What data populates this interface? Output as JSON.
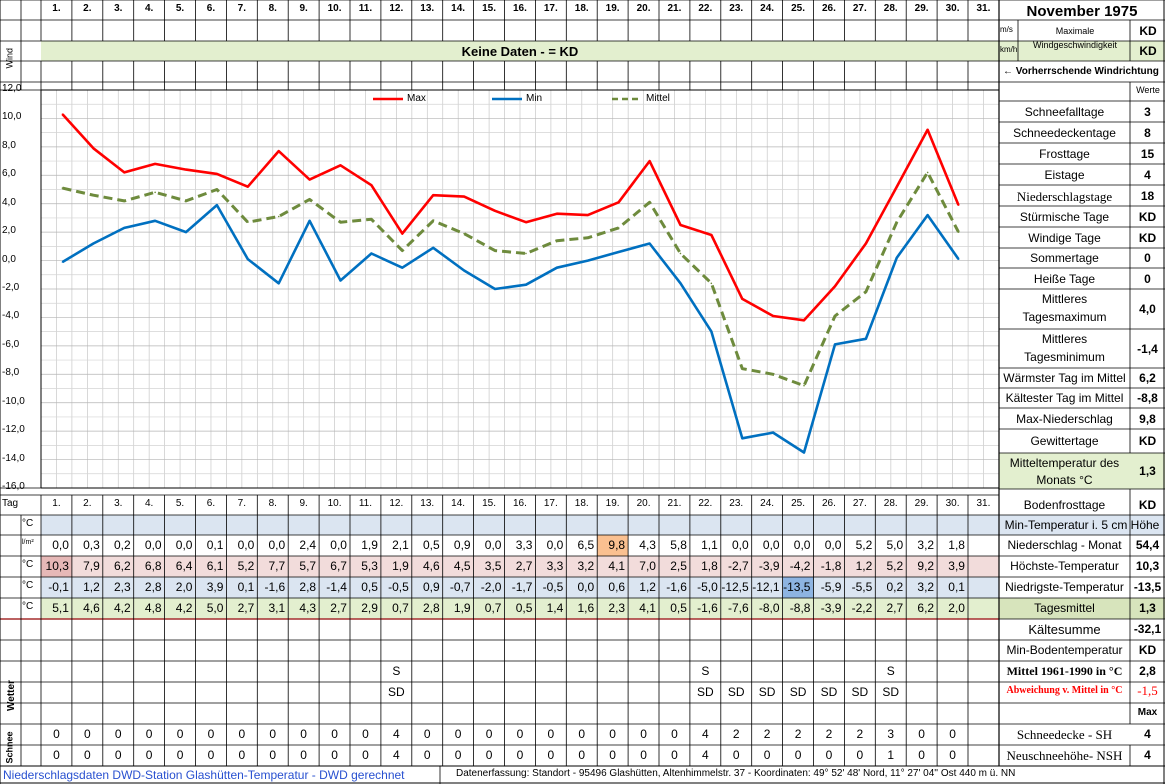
{
  "title": "November 1975",
  "days": [
    "1.",
    "2.",
    "3.",
    "4.",
    "5.",
    "6.",
    "7.",
    "8.",
    "9.",
    "10.",
    "11.",
    "12.",
    "13.",
    "14.",
    "15.",
    "16.",
    "17.",
    "18.",
    "19.",
    "20.",
    "21.",
    "22.",
    "23.",
    "24.",
    "25.",
    "26.",
    "27.",
    "28.",
    "29.",
    "30.",
    "31."
  ],
  "wind": {
    "label": "Wind",
    "no_data": "Keine Daten -  = KD",
    "unit_ms": "m/s",
    "unit_kmh": "km/h",
    "max_label": "Maximale Windgeschwindigkeit",
    "max_ms": "KD",
    "max_kmh": "KD",
    "direction": "← Vorherrschende Windrichtung",
    "werte": "Werte"
  },
  "chart_data": {
    "type": "line",
    "x": [
      1,
      2,
      3,
      4,
      5,
      6,
      7,
      8,
      9,
      10,
      11,
      12,
      13,
      14,
      15,
      16,
      17,
      18,
      19,
      20,
      21,
      22,
      23,
      24,
      25,
      26,
      27,
      28,
      29,
      30
    ],
    "series": [
      {
        "name": "Max",
        "color": "#ff0000",
        "values": [
          10.3,
          7.9,
          6.2,
          6.8,
          6.4,
          6.1,
          5.2,
          7.7,
          5.7,
          6.7,
          5.3,
          1.9,
          4.6,
          4.5,
          3.5,
          2.7,
          3.3,
          3.2,
          4.1,
          7.0,
          2.5,
          1.8,
          -2.7,
          -3.9,
          -4.2,
          -1.8,
          1.2,
          5.2,
          9.2,
          3.9
        ]
      },
      {
        "name": "Min",
        "color": "#0070c0",
        "values": [
          -0.1,
          1.2,
          2.3,
          2.8,
          2.0,
          3.9,
          0.1,
          -1.6,
          2.8,
          -1.4,
          0.5,
          -0.5,
          0.9,
          -0.7,
          -2.0,
          -1.7,
          -0.5,
          0.0,
          0.6,
          1.2,
          -1.6,
          -5.0,
          -12.5,
          -12.1,
          -13.5,
          -5.9,
          -5.5,
          0.2,
          3.2,
          0.1
        ]
      },
      {
        "name": "Mittel",
        "color": "#6e8b3d",
        "values": [
          5.1,
          4.6,
          4.2,
          4.8,
          4.2,
          5.0,
          2.7,
          3.1,
          4.3,
          2.7,
          2.9,
          0.7,
          2.8,
          1.9,
          0.7,
          0.5,
          1.4,
          1.6,
          2.3,
          4.1,
          0.5,
          -1.6,
          -7.6,
          -8.0,
          -8.8,
          -3.9,
          -2.2,
          2.7,
          6.2,
          2.0
        ]
      }
    ],
    "ylim": [
      -16,
      12
    ],
    "ticks": [
      "12,0",
      "10,0",
      "8,0",
      "6,0",
      "4,0",
      "2,0",
      "0,0",
      "-2,0",
      "-4,0",
      "-6,0",
      "-8,0",
      "-10,0",
      "-12,0",
      "-14,0",
      "-16,0"
    ],
    "grid": true,
    "legend": "top"
  },
  "table": {
    "tag": "Tag",
    "rows": [
      {
        "unit": "°C",
        "values": [
          "",
          "",
          "",
          "",
          "",
          "",
          "",
          "",
          "",
          "",
          "",
          "",
          "",
          "",
          "",
          "",
          "",
          "",
          "",
          "",
          "",
          "",
          "",
          "",
          "",
          "",
          "",
          "",
          "",
          "",
          ""
        ]
      },
      {
        "unit": "l/m²",
        "values": [
          "0,0",
          "0,3",
          "0,2",
          "0,0",
          "0,0",
          "0,1",
          "0,0",
          "0,0",
          "2,4",
          "0,0",
          "1,9",
          "2,1",
          "0,5",
          "0,9",
          "0,0",
          "3,3",
          "0,0",
          "6,5",
          "9,8",
          "4,3",
          "5,8",
          "1,1",
          "0,0",
          "0,0",
          "0,0",
          "0,0",
          "5,2",
          "5,0",
          "3,2",
          "1,8",
          ""
        ]
      },
      {
        "unit": "°C",
        "values": [
          "10,3",
          "7,9",
          "6,2",
          "6,8",
          "6,4",
          "6,1",
          "5,2",
          "7,7",
          "5,7",
          "6,7",
          "5,3",
          "1,9",
          "4,6",
          "4,5",
          "3,5",
          "2,7",
          "3,3",
          "3,2",
          "4,1",
          "7,0",
          "2,5",
          "1,8",
          "-2,7",
          "-3,9",
          "-4,2",
          "-1,8",
          "1,2",
          "5,2",
          "9,2",
          "3,9",
          ""
        ]
      },
      {
        "unit": "°C",
        "values": [
          "-0,1",
          "1,2",
          "2,3",
          "2,8",
          "2,0",
          "3,9",
          "0,1",
          "-1,6",
          "2,8",
          "-1,4",
          "0,5",
          "-0,5",
          "0,9",
          "-0,7",
          "-2,0",
          "-1,7",
          "-0,5",
          "0,0",
          "0,6",
          "1,2",
          "-1,6",
          "-5,0",
          "-12,5",
          "-12,1",
          "-13,5",
          "-5,9",
          "-5,5",
          "0,2",
          "3,2",
          "0,1",
          ""
        ]
      },
      {
        "unit": "°C",
        "values": [
          "5,1",
          "4,6",
          "4,2",
          "4,8",
          "4,2",
          "5,0",
          "2,7",
          "3,1",
          "4,3",
          "2,7",
          "2,9",
          "0,7",
          "2,8",
          "1,9",
          "0,7",
          "0,5",
          "1,4",
          "1,6",
          "2,3",
          "4,1",
          "0,5",
          "-1,6",
          "-7,6",
          "-8,0",
          "-8,8",
          "-3,9",
          "-2,2",
          "2,7",
          "6,2",
          "2,0",
          ""
        ]
      }
    ],
    "wetter_label": "Wetter",
    "wetter_s": [
      "",
      "",
      "",
      "",
      "",
      "",
      "",
      "",
      "",
      "",
      "",
      "S",
      "",
      "",
      "",
      "",
      "",
      "",
      "",
      "",
      "",
      "S",
      "",
      "",
      "",
      "",
      "",
      "S",
      "",
      "",
      ""
    ],
    "wetter_sd": [
      "",
      "",
      "",
      "",
      "",
      "",
      "",
      "",
      "",
      "",
      "",
      "SD",
      "",
      "",
      "",
      "",
      "",
      "",
      "",
      "",
      "",
      "SD",
      "SD",
      "SD",
      "SD",
      "SD",
      "SD",
      "SD",
      "",
      "",
      ""
    ],
    "schnee_label": "Schnee",
    "sh": [
      "0",
      "0",
      "0",
      "0",
      "0",
      "0",
      "0",
      "0",
      "0",
      "0",
      "0",
      "4",
      "0",
      "0",
      "0",
      "0",
      "0",
      "0",
      "0",
      "0",
      "0",
      "4",
      "2",
      "2",
      "2",
      "2",
      "2",
      "3",
      "0",
      "0",
      ""
    ],
    "nsh": [
      "0",
      "0",
      "0",
      "0",
      "0",
      "0",
      "0",
      "0",
      "0",
      "0",
      "0",
      "4",
      "0",
      "0",
      "0",
      "0",
      "0",
      "0",
      "0",
      "0",
      "0",
      "4",
      "0",
      "0",
      "0",
      "0",
      "0",
      "1",
      "0",
      "0",
      ""
    ]
  },
  "stats_top": [
    {
      "label": "Schneefalltage",
      "value": "3"
    },
    {
      "label": "Schneedeckentage",
      "value": "8"
    },
    {
      "label": "Frosttage",
      "value": "15"
    },
    {
      "label": "Eistage",
      "value": "4"
    },
    {
      "label": "Niederschlagstage",
      "value": "18"
    },
    {
      "label": "Stürmische Tage",
      "value": "KD"
    },
    {
      "label": "Windige Tage",
      "value": "KD"
    },
    {
      "label": "Sommertage",
      "value": "0"
    },
    {
      "label": "Heiße Tage",
      "value": "0"
    }
  ],
  "stats_tall": [
    {
      "label1": "Mittleres",
      "label2": "Tagesmaximum",
      "value": "4,0"
    },
    {
      "label1": "Mittleres",
      "label2": "Tagesminimum",
      "value": "-1,4"
    }
  ],
  "stats_mid": [
    {
      "label": "Wärmster Tag im Mittel",
      "value": "6,2"
    },
    {
      "label": "Kältester Tag im Mittel",
      "value": "-8,8"
    },
    {
      "label": "Max-Niederschlag",
      "value": "9,8"
    },
    {
      "label": "Gewittertage",
      "value": "KD"
    }
  ],
  "mittel_month": {
    "label1": "Mitteltemperatur des",
    "label2": "Monats °C",
    "value": "1,3"
  },
  "bodenfrost": {
    "label": "Bodenfrosttage",
    "value": "KD"
  },
  "min5cm": "Min-Temperatur i. 5 cm Höhe",
  "sums": [
    {
      "label": "Niederschlag - Monat",
      "value": "54,4"
    },
    {
      "label": "Höchste-Temperatur",
      "value": "10,3"
    },
    {
      "label": "Niedrigste-Temperatur",
      "value": "-13,5"
    },
    {
      "label": "Tagesmittel",
      "value": "1,3"
    }
  ],
  "kaelte": {
    "label": "Kältesumme",
    "value": "-32,1"
  },
  "minboden": {
    "label": "Min-Bodentemperatur",
    "value": "KD"
  },
  "mittel6190": {
    "label": "Mittel 1961-1990 in °C",
    "value": "2,8"
  },
  "abweichung": {
    "label": "Abweichung v. Mittel in °C",
    "value": "-1,5"
  },
  "max_hdr": "Max",
  "schnee_stats": [
    {
      "label": "Schneedecke -   SH",
      "value": "4"
    },
    {
      "label": "Neuschneehöhe- NSH",
      "value": "4"
    }
  ],
  "footer_left": "Niederschlagsdaten DWD-Station Glashütten-Temperatur -  DWD gerechnet",
  "footer_right": "Datenerfassung: Standort -  95496 Glashütten, Altenhimmelstr. 37 - Koordinaten:  49° 52' 48' Nord,   11° 27' 04'' Ost   440 m ü. NN"
}
